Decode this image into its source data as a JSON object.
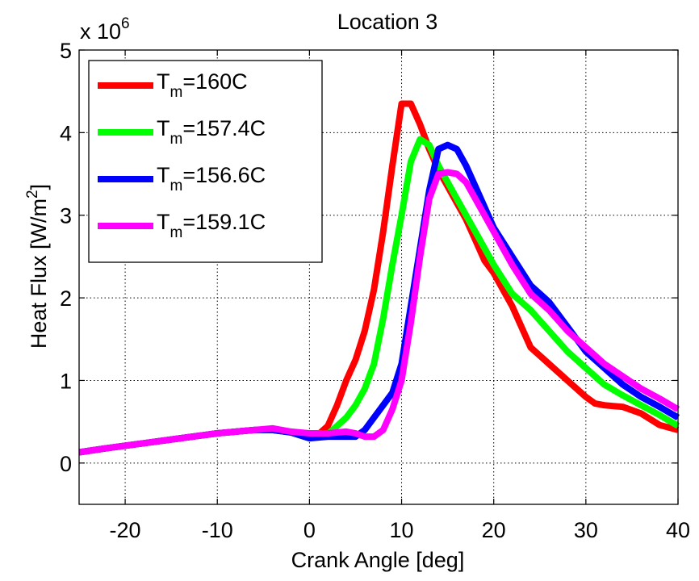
{
  "chart_data": {
    "type": "line",
    "title": "Location 3",
    "xlabel": "Crank Angle [deg]",
    "ylabel_main": "Heat Flux [W/m",
    "ylabel_sup": "2",
    "ylabel_end": "]",
    "y_multiplier_base": "x 10",
    "y_multiplier_exp": "6",
    "xlim": [
      -25,
      40
    ],
    "ylim": [
      -0.5,
      5
    ],
    "xticks": [
      -20,
      -10,
      0,
      10,
      20,
      30,
      40
    ],
    "xtick_labels": [
      "-20",
      "-10",
      "0",
      "10",
      "20",
      "30",
      "40"
    ],
    "yticks": [
      0,
      1,
      2,
      3,
      4,
      5
    ],
    "ytick_labels": [
      "0",
      "1",
      "2",
      "3",
      "4",
      "5"
    ],
    "grid": true,
    "legend_position": "top-left",
    "series": [
      {
        "name": "T_m=160C",
        "label_base": "T",
        "label_sub": "m",
        "label_rest": "=160C",
        "color": "#ff0000",
        "x": [
          -25,
          -22,
          -18,
          -14,
          -10,
          -6,
          -4,
          -2,
          0,
          1,
          2,
          3,
          4,
          5,
          6,
          7,
          8,
          9,
          10,
          11,
          12,
          13,
          14,
          15,
          16,
          17,
          18,
          19,
          20,
          22,
          24,
          26,
          28,
          30,
          31,
          32,
          34,
          36,
          38,
          40
        ],
        "y": [
          0.13,
          0.18,
          0.24,
          0.3,
          0.36,
          0.4,
          0.4,
          0.37,
          0.3,
          0.35,
          0.45,
          0.7,
          1.0,
          1.25,
          1.6,
          2.1,
          2.8,
          3.6,
          4.35,
          4.35,
          4.1,
          3.8,
          3.55,
          3.35,
          3.15,
          2.95,
          2.7,
          2.45,
          2.3,
          1.9,
          1.4,
          1.2,
          1.0,
          0.8,
          0.72,
          0.7,
          0.68,
          0.6,
          0.46,
          0.4
        ]
      },
      {
        "name": "T_m=157.4C",
        "label_base": "T",
        "label_sub": "m",
        "label_rest": "=157.4C",
        "color": "#00ff00",
        "x": [
          -25,
          -22,
          -18,
          -14,
          -10,
          -6,
          -4,
          -2,
          0,
          2,
          3,
          4,
          5,
          6,
          7,
          8,
          9,
          10,
          11,
          12,
          13,
          14,
          15,
          16,
          17,
          18,
          20,
          22,
          24,
          26,
          28,
          30,
          32,
          34,
          36,
          38,
          40
        ],
        "y": [
          0.13,
          0.18,
          0.24,
          0.3,
          0.36,
          0.4,
          0.4,
          0.37,
          0.3,
          0.35,
          0.45,
          0.55,
          0.7,
          0.9,
          1.2,
          1.75,
          2.4,
          3.0,
          3.65,
          3.92,
          3.85,
          3.6,
          3.4,
          3.2,
          3.0,
          2.8,
          2.4,
          2.05,
          1.85,
          1.6,
          1.35,
          1.15,
          0.95,
          0.82,
          0.7,
          0.58,
          0.45
        ]
      },
      {
        "name": "T_m=156.6C",
        "label_base": "T",
        "label_sub": "m",
        "label_rest": "=156.6C",
        "color": "#0000ff",
        "x": [
          -25,
          -22,
          -18,
          -14,
          -10,
          -6,
          -4,
          -2,
          0,
          2,
          4,
          5,
          6,
          7,
          8,
          9,
          10,
          11,
          12,
          13,
          14,
          15,
          16,
          17,
          18,
          20,
          22,
          24,
          26,
          28,
          30,
          32,
          34,
          36,
          38,
          40
        ],
        "y": [
          0.13,
          0.18,
          0.24,
          0.3,
          0.36,
          0.4,
          0.4,
          0.37,
          0.3,
          0.32,
          0.32,
          0.32,
          0.4,
          0.55,
          0.7,
          0.85,
          1.2,
          1.9,
          2.6,
          3.3,
          3.8,
          3.85,
          3.8,
          3.6,
          3.35,
          2.85,
          2.5,
          2.15,
          1.95,
          1.65,
          1.35,
          1.15,
          0.95,
          0.8,
          0.68,
          0.55
        ]
      },
      {
        "name": "T_m=159.1C",
        "label_base": "T",
        "label_sub": "m",
        "label_rest": "=159.1C",
        "color": "#ff00ff",
        "x": [
          -25,
          -22,
          -18,
          -14,
          -10,
          -6,
          -4,
          -2,
          0,
          2,
          4,
          5,
          6,
          7,
          8,
          9,
          10,
          11,
          12,
          13,
          14,
          15,
          16,
          17,
          18,
          20,
          22,
          24,
          26,
          28,
          30,
          32,
          34,
          36,
          38,
          40
        ],
        "y": [
          0.13,
          0.18,
          0.24,
          0.3,
          0.36,
          0.4,
          0.42,
          0.38,
          0.36,
          0.36,
          0.38,
          0.36,
          0.32,
          0.32,
          0.4,
          0.65,
          1.0,
          1.7,
          2.5,
          3.2,
          3.5,
          3.52,
          3.5,
          3.4,
          3.2,
          2.8,
          2.4,
          2.05,
          1.85,
          1.6,
          1.4,
          1.2,
          1.05,
          0.9,
          0.78,
          0.65
        ]
      }
    ]
  }
}
